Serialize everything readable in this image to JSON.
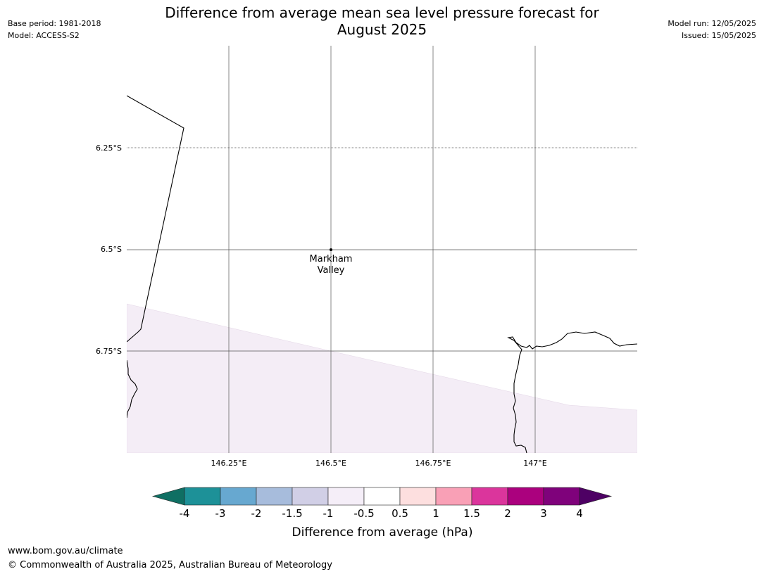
{
  "header": {
    "title_line1": "Difference from average mean sea level pressure forecast for",
    "title_line2": "August 2025",
    "base_period": "Base period: 1981-2018",
    "model": "Model: ACCESS-S2",
    "model_run": "Model run: 12/05/2025",
    "issued": "Issued: 15/05/2025"
  },
  "map": {
    "place_label_line1": "Markham",
    "place_label_line2": "Valley",
    "lat_labels": [
      "6.25°S",
      "6.5°S",
      "6.75°S"
    ],
    "lon_labels": [
      "146.25°E",
      "146.5°E",
      "146.75°E",
      "147°E"
    ],
    "anomaly_fill_color": "#f4edf6",
    "coast_color": "#000000",
    "grid_color": "#555555"
  },
  "colorbar": {
    "tick_labels": [
      "-4",
      "-3",
      "-2",
      "-1.5",
      "-1",
      "-0.5",
      "0.5",
      "1",
      "1.5",
      "2",
      "3",
      "4"
    ],
    "colors": [
      "#0f6f63",
      "#1d9198",
      "#67a8d0",
      "#a7bcdc",
      "#d1cfe6",
      "#f5eef8",
      "#ffffff",
      "#fddfdf",
      "#f9a0b6",
      "#db359c",
      "#ab017e",
      "#7f027b",
      "#4e0164"
    ],
    "label": "Difference from average (hPa)"
  },
  "footer": {
    "url": "www.bom.gov.au/climate",
    "copyright": "© Commonwealth of Australia 2025, Australian Bureau of Meteorology"
  }
}
